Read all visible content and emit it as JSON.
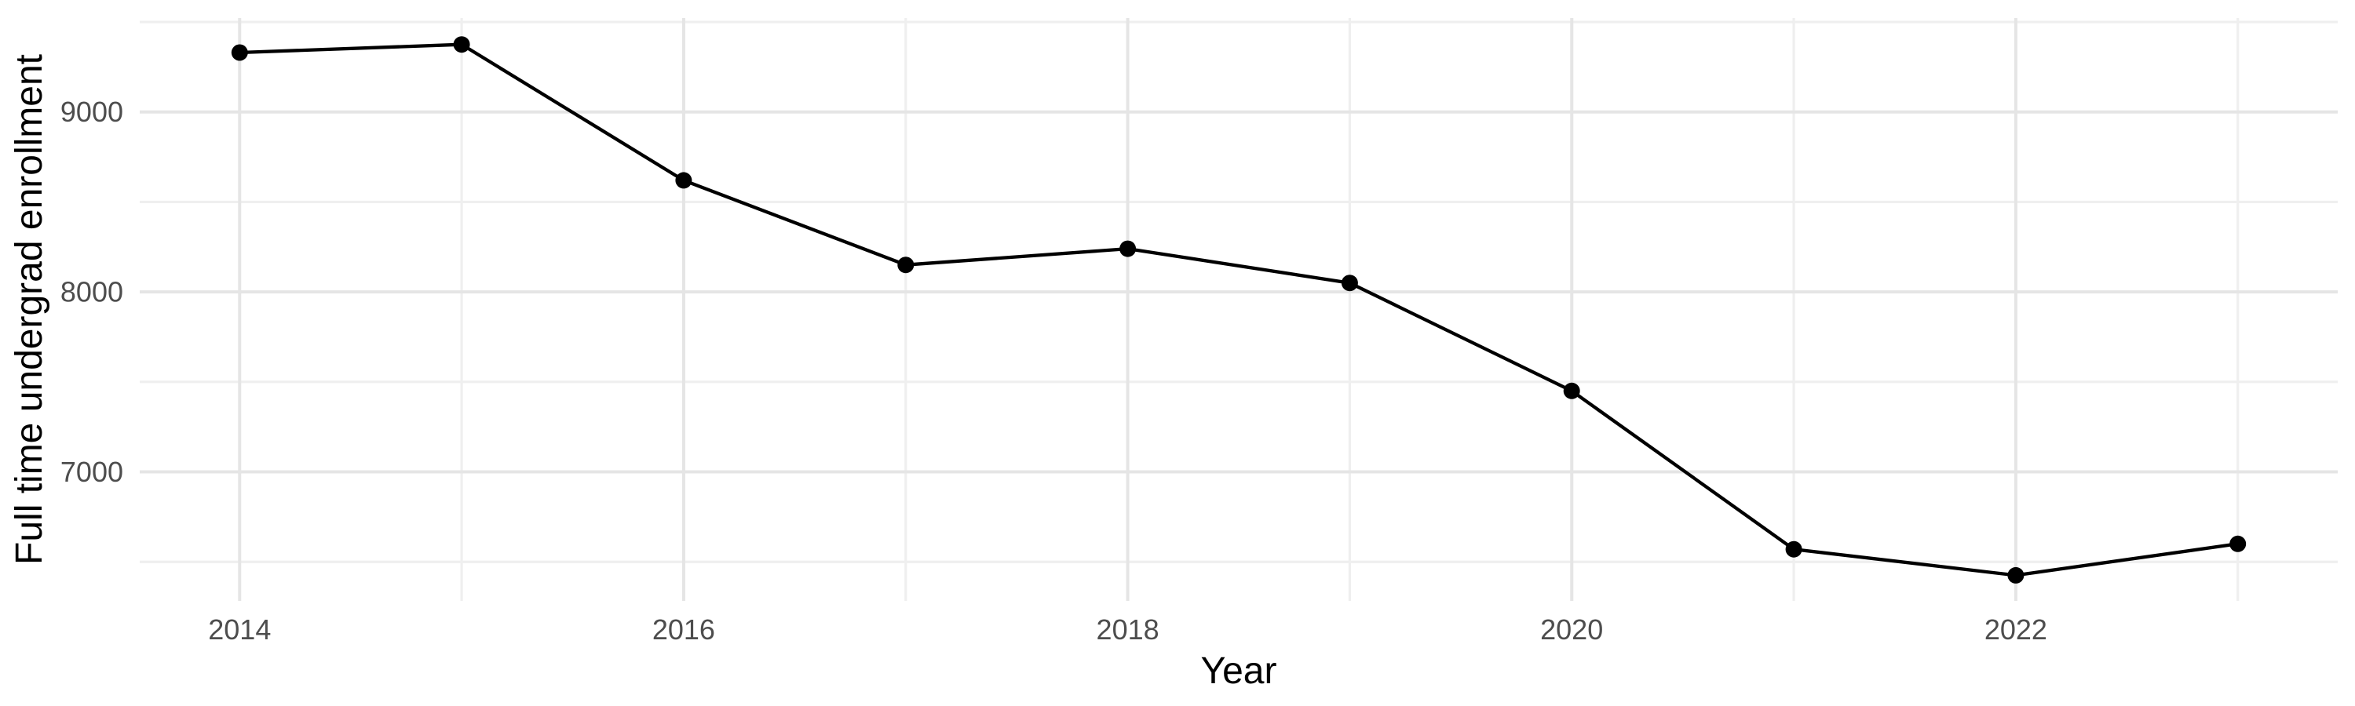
{
  "chart_data": {
    "type": "line",
    "title": "",
    "xlabel": "Year",
    "ylabel": "Full time undergrad enrollment",
    "x": [
      2014,
      2015,
      2016,
      2017,
      2018,
      2019,
      2020,
      2021,
      2022,
      2023
    ],
    "values": [
      9330,
      9375,
      8620,
      8150,
      8240,
      8050,
      7450,
      6570,
      6425,
      6600
    ],
    "series_name": "Full time undergrad enrollment",
    "x_major_ticks": [
      2014,
      2016,
      2018,
      2020,
      2022
    ],
    "x_major_tick_labels": [
      "2014",
      "2016",
      "2018",
      "2020",
      "2022"
    ],
    "x_minor_ticks": [
      2015,
      2017,
      2019,
      2021,
      2023
    ],
    "y_major_ticks": [
      7000,
      8000,
      9000
    ],
    "y_major_tick_labels": [
      "7000",
      "8000",
      "9000"
    ],
    "y_minor_ticks": [
      6500,
      7500,
      8500,
      9500
    ],
    "xlim": [
      2013.55,
      2023.45
    ],
    "ylim": [
      6283,
      9522
    ],
    "grid": true,
    "legend_position": "none",
    "colors": {
      "background": "#FFFFFF",
      "line": "#000000",
      "point": "#000000",
      "grid_major": "#E5E5E5",
      "grid_minor": "#EFEFEF",
      "tick_label": "#4D4D4D",
      "axis_title": "#000000"
    }
  }
}
